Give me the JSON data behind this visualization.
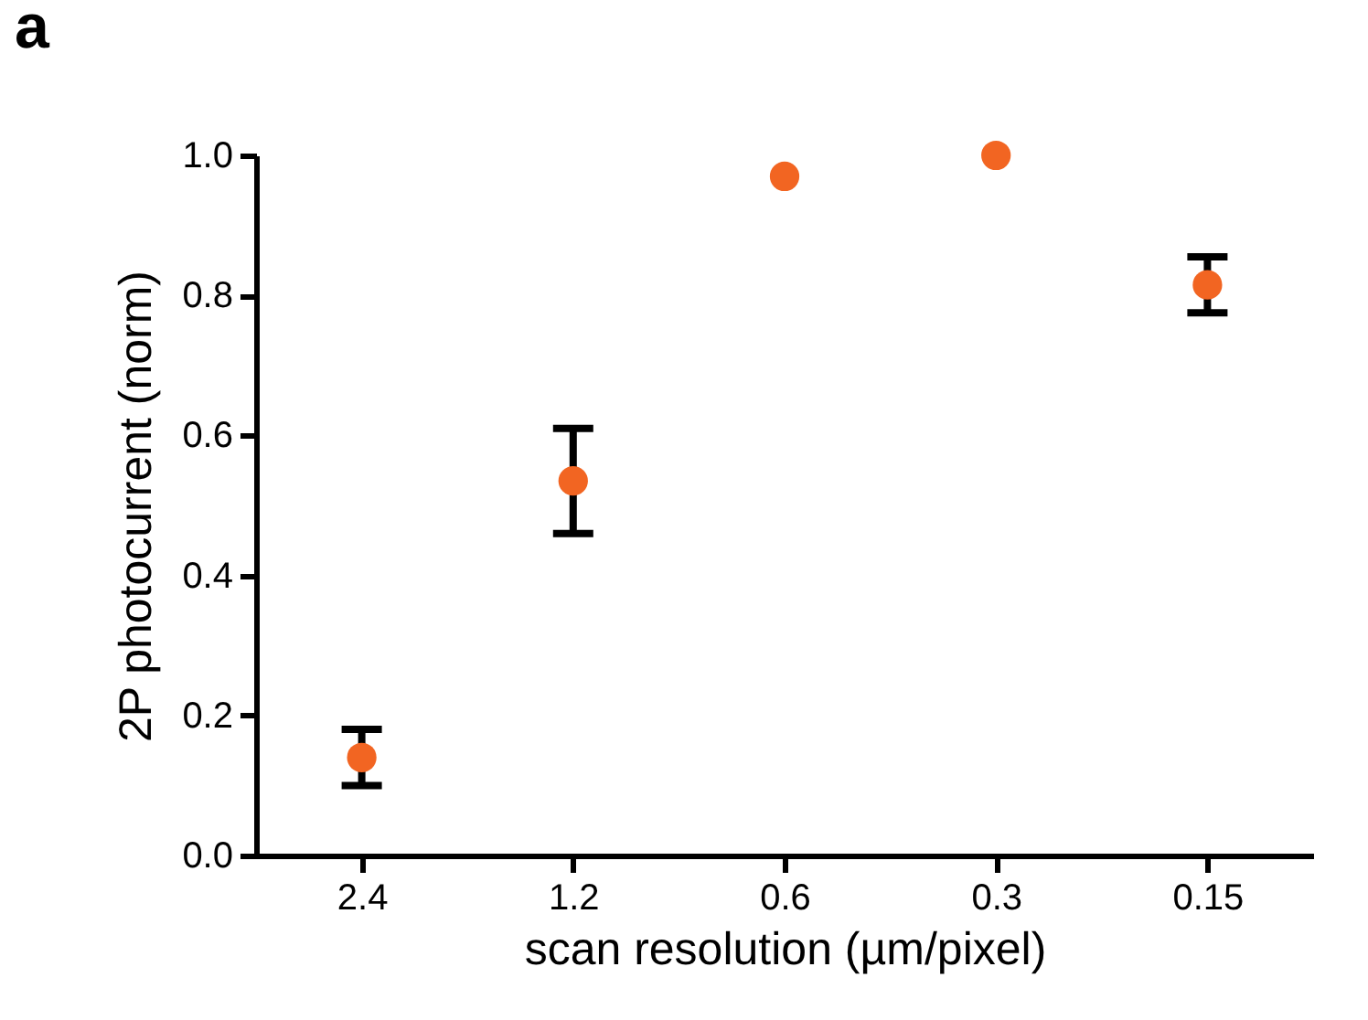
{
  "chart_data": {
    "type": "scatter",
    "title": "a",
    "xlabel": "scan resolution (µm/pixel)",
    "ylabel": "2P photocurrent (norm)",
    "categories": [
      "2.4",
      "1.2",
      "0.6",
      "0.3",
      "0.15"
    ],
    "series": [
      {
        "color": "#f26522",
        "values": [
          0.14,
          0.535,
          0.97,
          1.0,
          0.815
        ],
        "errors": [
          [
            0.1,
            0.18
          ],
          [
            0.46,
            0.61
          ],
          null,
          null,
          [
            0.775,
            0.855
          ]
        ]
      }
    ],
    "ylim": [
      0,
      1.0
    ],
    "yticks": [
      {
        "value": 0,
        "label": "0.0"
      },
      {
        "value": 0.2,
        "label": "0.2"
      },
      {
        "value": 0.4,
        "label": "0.4"
      },
      {
        "value": 0.6,
        "label": "0.6"
      },
      {
        "value": 0.8,
        "label": "0.8"
      },
      {
        "value": 1.0,
        "label": "1.0"
      }
    ],
    "grid": false,
    "marker": "circle"
  }
}
